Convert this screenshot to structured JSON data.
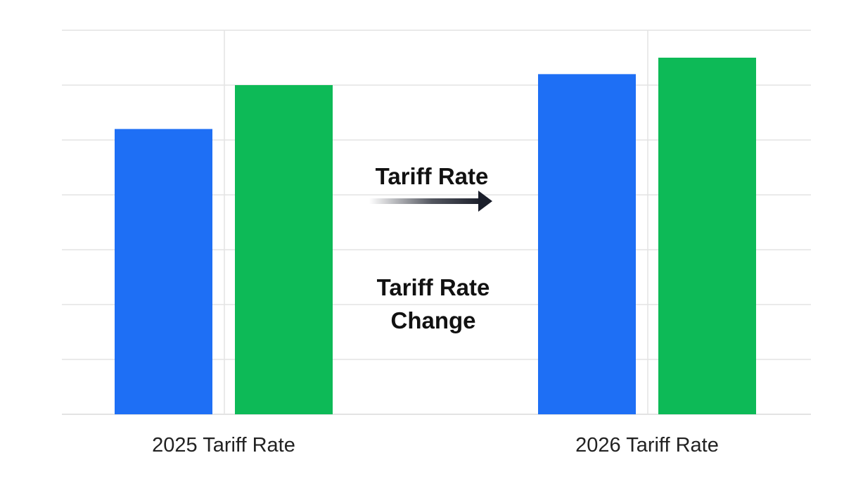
{
  "chart_data": {
    "type": "bar",
    "categories": [
      "2025 Tariff Rate",
      "2026 Tariff Rate"
    ],
    "series": [
      {
        "values": [
          52,
          62
        ]
      },
      {
        "values": [
          60,
          65
        ]
      }
    ],
    "ylim": [
      0,
      70
    ],
    "grid": true,
    "annotations": {
      "arrow_label": "Tariff Rate",
      "change_label_line1": "Tariff Rate",
      "change_label_line2": "Change"
    },
    "colors": {
      "series_1": "#1E6FF5",
      "series_2": "#0DBA57",
      "grid": "#E3E3E3",
      "annotation_text": "#111111",
      "arrow": "#1A1E2A",
      "category_text": "#222222"
    }
  }
}
